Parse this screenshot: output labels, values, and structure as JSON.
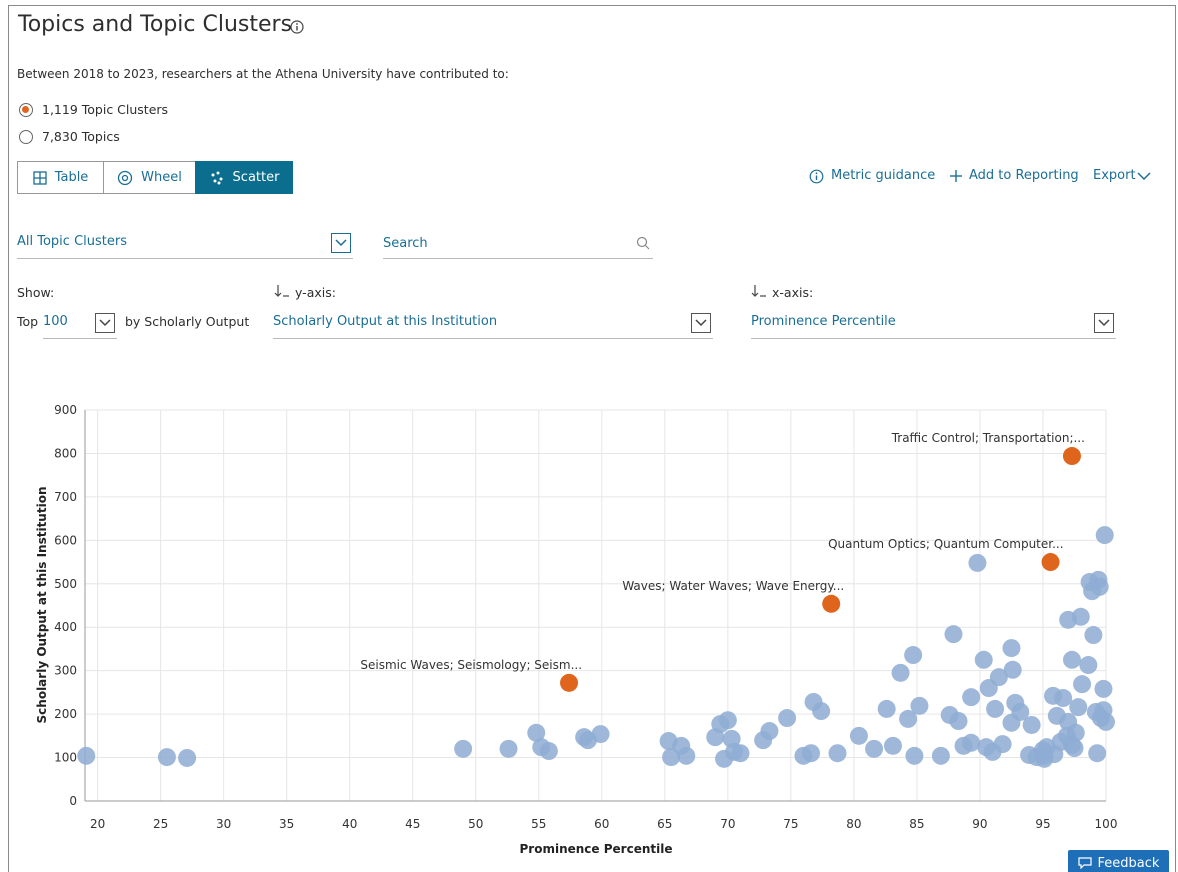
{
  "header": {
    "title": "Topics and Topic Clusters",
    "description": "Between 2018 to 2023, researchers at the Athena University have contributed to:"
  },
  "options": [
    "1,119 Topic Clusters",
    "7,830 Topics"
  ],
  "tabs": [
    "Table",
    "Wheel",
    "Scatter"
  ],
  "actions": [
    "Metric guidance",
    "Add to Reporting",
    "Export"
  ],
  "filter": "All Topic Clusters",
  "search": "Search",
  "controls": {
    "show_label": "Show:",
    "top_label": "Top",
    "top_value": "100",
    "by_label": "by Scholarly Output",
    "y_label": "y-axis:",
    "y_value": "Scholarly Output at this Institution",
    "x_label": "x-axis:",
    "x_value": "Prominence Percentile"
  },
  "feedback": "Feedback",
  "chart_data": {
    "type": "scatter",
    "x_label": "Prominence Percentile",
    "y_label": "Scholarly Output at this Institution",
    "xlim": [
      19,
      100
    ],
    "xticks": [
      20,
      25,
      30,
      35,
      40,
      45,
      50,
      55,
      60,
      65,
      70,
      75,
      80,
      85,
      90,
      95,
      100
    ],
    "ylim": [
      0,
      900
    ],
    "yticks": [
      0,
      100,
      200,
      300,
      400,
      500,
      600,
      700,
      800,
      900
    ],
    "grid": true,
    "series": [
      {
        "color": "#8eabd3",
        "x": [
          19.1,
          25.5,
          27.1,
          49.0,
          52.6,
          54.8,
          55.2,
          55.8,
          58.6,
          58.9,
          59.9,
          65.3,
          65.5,
          66.3,
          66.7,
          69.0,
          69.4,
          70.0,
          69.7,
          70.3,
          70.5,
          71.0,
          72.8,
          73.3,
          74.7,
          76.0,
          76.6,
          76.8,
          77.4,
          78.7,
          80.4,
          81.6,
          82.6,
          83.1,
          83.7,
          84.3,
          84.7,
          84.8,
          85.2,
          86.9,
          87.9,
          87.6,
          88.3,
          88.7,
          89.3,
          89.3,
          89.8,
          90.3,
          90.7,
          90.5,
          91.0,
          91.2,
          91.5,
          91.8,
          92.5,
          92.6,
          92.5,
          92.8,
          93.2,
          93.9,
          94.1,
          94.5,
          95.0,
          95.1,
          95.3,
          95.1,
          95.8,
          95.9,
          96.1,
          96.4,
          96.6,
          96.9,
          97.0,
          97.0,
          97.3,
          97.5,
          97.6,
          97.8,
          98.0,
          98.1,
          98.6,
          98.7,
          99.0,
          98.9,
          99.2,
          99.3,
          99.4,
          99.5,
          99.6,
          99.8,
          99.8,
          100.0,
          99.9,
          97.3
        ],
        "values": [
          104,
          101,
          99,
          120,
          120,
          157,
          124,
          115,
          147,
          140,
          154,
          138,
          101,
          127,
          104,
          147,
          177,
          186,
          97,
          143,
          113,
          110,
          140,
          161,
          191,
          104,
          110,
          228,
          207,
          110,
          150,
          120,
          212,
          127,
          295,
          189,
          336,
          104,
          219,
          104,
          384,
          198,
          184,
          127,
          239,
          134,
          548,
          325,
          260,
          124,
          113,
          212,
          285,
          131,
          352,
          302,
          180,
          226,
          205,
          106,
          175,
          101,
          117,
          104,
          124,
          97,
          242,
          108,
          196,
          136,
          237,
          150,
          417,
          182,
          325,
          122,
          157,
          216,
          424,
          269,
          313,
          504,
          382,
          483,
          205,
          110,
          509,
          493,
          191,
          258,
          209,
          182,
          612,
          129
        ]
      },
      {
        "color": "#e0651c",
        "x": [
          57.4,
          78.2,
          95.6,
          97.3
        ],
        "values": [
          272,
          454,
          550,
          794
        ],
        "labels": [
          "Seismic Waves; Seismology; Seism...",
          "Waves; Water Waves; Wave Energy...",
          "Quantum Optics; Quantum Computer...",
          "Traffic Control; Transportation;..."
        ]
      }
    ]
  }
}
